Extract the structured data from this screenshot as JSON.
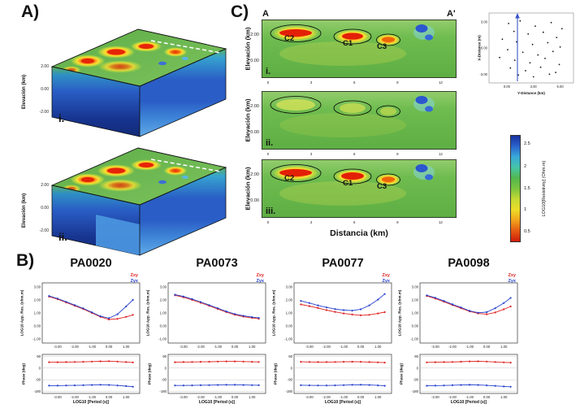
{
  "panels": {
    "a_label": "A)",
    "b_label": "B)",
    "c_label": "C)"
  },
  "panel_a": {
    "blocks": [
      {
        "label": "i.",
        "ylabel": "Elevación (km)",
        "yticks": [
          "2.00",
          "0.00",
          "-2.00"
        ]
      },
      {
        "label": "ii.",
        "ylabel": "Elevación (km)",
        "yticks": [
          "2.00",
          "0.00",
          "-2.00"
        ]
      }
    ]
  },
  "panel_c": {
    "profile_start": "A",
    "profile_end": "A'",
    "xlabel": "Distancia (km)",
    "xticks": [
      "0",
      "3",
      "6",
      "9",
      "12"
    ],
    "sections": [
      {
        "label": "i.",
        "ylabel": "Elevación (km)",
        "yticks": [
          "2.00",
          "0.00"
        ],
        "annotations": {
          "c2": "C2",
          "c1": "C1",
          "c3": "C3"
        }
      },
      {
        "label": "ii.",
        "ylabel": "Elevación (km)",
        "yticks": [
          "2.00",
          "0.00"
        ]
      },
      {
        "label": "iii.",
        "ylabel": "Elevación (km)",
        "yticks": [
          "2.00",
          "0.00"
        ],
        "annotations": {
          "c2": "C2",
          "c1": "C1",
          "c3": "C3"
        }
      }
    ]
  },
  "map": {
    "xlabel": "Y-Distance (km)",
    "ylabel": "X-Distance (m)",
    "xticks": [
      "0.00",
      "3.00",
      "6.00"
    ],
    "yticks": [
      "3.00",
      "0.00",
      "-3.00"
    ]
  },
  "colorbar": {
    "title": "LOG10[Resistivity] (Ohm.m)",
    "ticks": [
      "2.5",
      "2",
      "1.5",
      "1",
      "0.5"
    ],
    "gradient_colors": [
      "#18309e",
      "#2b63cc",
      "#38a9d8",
      "#46c4a8",
      "#52b84e",
      "#7cc43f",
      "#c4d934",
      "#eedd28",
      "#f0a31c",
      "#e55a12",
      "#ce1d0c"
    ]
  },
  "panel_b": {
    "ylabel_rho": "LOG10 App. Res. (ohm.m)",
    "ylabel_phase": "Phase (deg)",
    "xlabel": "LOG10 [Period (s)]",
    "legend": [
      {
        "label": "Zxy",
        "color": "#e02020"
      },
      {
        "label": "Zyx",
        "color": "#2742cc"
      }
    ],
    "rho_yticks": [
      "3.00",
      "2.00",
      "1.00",
      "0.00",
      "-1.00"
    ],
    "phase_yticks": [
      "90",
      "0",
      "-90",
      "-180"
    ],
    "xticks": [
      "-3.00",
      "-2.00",
      "-1.00",
      "0.00",
      "1.00"
    ]
  },
  "chart_data": {
    "type": "line",
    "xlabel": "LOG10 [Period (s)]",
    "x": [
      -3.5,
      -3.0,
      -2.5,
      -2.0,
      -1.5,
      -1.0,
      -0.5,
      0.0,
      0.5,
      1.0,
      1.4
    ],
    "xlim": [
      -3.9,
      1.8
    ],
    "rho_ylim": [
      -1.3,
      3.3
    ],
    "phase_ylim": [
      -195,
      105
    ],
    "stations": [
      {
        "name": "PA0020",
        "series": [
          {
            "name": "Zxy",
            "color": "#e02020",
            "app_res_log10": [
              2.25,
              2.05,
              1.8,
              1.55,
              1.3,
              1.0,
              0.7,
              0.5,
              0.55,
              0.7,
              0.85
            ],
            "phase_deg": [
              45,
              45,
              46,
              47,
              48,
              50,
              52,
              53,
              50,
              46,
              43
            ]
          },
          {
            "name": "Zyx",
            "color": "#2742cc",
            "app_res_log10": [
              2.3,
              2.1,
              1.85,
              1.6,
              1.35,
              1.05,
              0.75,
              0.6,
              0.9,
              1.5,
              2.0
            ],
            "phase_deg": [
              -135,
              -135,
              -134,
              -133,
              -132,
              -130,
              -128,
              -130,
              -134,
              -139,
              -143
            ]
          }
        ]
      },
      {
        "name": "PA0073",
        "series": [
          {
            "name": "Zxy",
            "color": "#e02020",
            "app_res_log10": [
              2.35,
              2.2,
              2.0,
              1.78,
              1.55,
              1.3,
              1.06,
              0.86,
              0.72,
              0.62,
              0.56
            ],
            "phase_deg": [
              45,
              46,
              47,
              48,
              49,
              50,
              51,
              51,
              50,
              48,
              47
            ]
          },
          {
            "name": "Zyx",
            "color": "#2742cc",
            "app_res_log10": [
              2.4,
              2.26,
              2.06,
              1.84,
              1.6,
              1.36,
              1.12,
              0.92,
              0.78,
              0.68,
              0.62
            ],
            "phase_deg": [
              -134,
              -134,
              -133,
              -132,
              -131,
              -130,
              -129,
              -129,
              -130,
              -131,
              -132
            ]
          }
        ]
      },
      {
        "name": "PA0077",
        "series": [
          {
            "name": "Zxy",
            "color": "#e02020",
            "app_res_log10": [
              1.65,
              1.52,
              1.38,
              1.22,
              1.08,
              0.96,
              0.88,
              0.82,
              0.86,
              0.96,
              1.06
            ],
            "phase_deg": [
              48,
              47,
              46,
              46,
              47,
              48,
              49,
              48,
              46,
              44,
              42
            ]
          },
          {
            "name": "Zyx",
            "color": "#2742cc",
            "app_res_log10": [
              1.92,
              1.76,
              1.58,
              1.42,
              1.3,
              1.22,
              1.18,
              1.28,
              1.58,
              2.02,
              2.45
            ],
            "phase_deg": [
              -132,
              -133,
              -134,
              -134,
              -133,
              -131,
              -129,
              -128,
              -130,
              -133,
              -136
            ]
          }
        ]
      },
      {
        "name": "PA0098",
        "series": [
          {
            "name": "Zxy",
            "color": "#e02020",
            "app_res_log10": [
              2.3,
              2.1,
              1.86,
              1.6,
              1.36,
              1.12,
              0.96,
              0.9,
              1.04,
              1.28,
              1.5
            ],
            "phase_deg": [
              44,
              45,
              46,
              47,
              49,
              51,
              52,
              50,
              47,
              44,
              42
            ]
          },
          {
            "name": "Zyx",
            "color": "#2742cc",
            "app_res_log10": [
              2.35,
              2.16,
              1.92,
              1.66,
              1.42,
              1.16,
              1.02,
              1.06,
              1.36,
              1.76,
              2.15
            ],
            "phase_deg": [
              -136,
              -135,
              -134,
              -132,
              -130,
              -129,
              -130,
              -133,
              -137,
              -141,
              -144
            ]
          }
        ]
      }
    ],
    "map_scatter": {
      "type": "scatter",
      "xlim": [
        -2,
        7.5
      ],
      "ylim": [
        -4,
        4
      ],
      "profile_line_x": 1.2,
      "points": [
        [
          0.2,
          2.8
        ],
        [
          1.5,
          3.1
        ],
        [
          3.2,
          2.5
        ],
        [
          5.0,
          2.9
        ],
        [
          6.2,
          2.2
        ],
        [
          0.8,
          1.9
        ],
        [
          2.4,
          1.6
        ],
        [
          4.1,
          1.8
        ],
        [
          5.6,
          1.2
        ],
        [
          -0.5,
          1.0
        ],
        [
          1.1,
          0.7
        ],
        [
          2.9,
          0.4
        ],
        [
          4.6,
          0.6
        ],
        [
          6.0,
          0.1
        ],
        [
          0.1,
          -0.2
        ],
        [
          1.8,
          -0.5
        ],
        [
          3.5,
          -0.8
        ],
        [
          5.2,
          -0.4
        ],
        [
          -0.8,
          -1.1
        ],
        [
          0.9,
          -1.4
        ],
        [
          2.6,
          -1.7
        ],
        [
          4.3,
          -1.2
        ],
        [
          5.9,
          -1.9
        ],
        [
          0.4,
          -2.3
        ],
        [
          2.1,
          -2.6
        ],
        [
          3.8,
          -2.2
        ],
        [
          5.5,
          -2.8
        ],
        [
          1.3,
          -3.1
        ],
        [
          3.0,
          -3.3
        ],
        [
          4.8,
          -3.0
        ]
      ]
    },
    "sections_anomalies": [
      {
        "id": "C2",
        "distance_km": 2.0,
        "elevation_km": 2.0
      },
      {
        "id": "C1",
        "distance_km": 5.8,
        "elevation_km": 1.8
      },
      {
        "id": "C3",
        "distance_km": 8.2,
        "elevation_km": 1.6
      }
    ]
  }
}
